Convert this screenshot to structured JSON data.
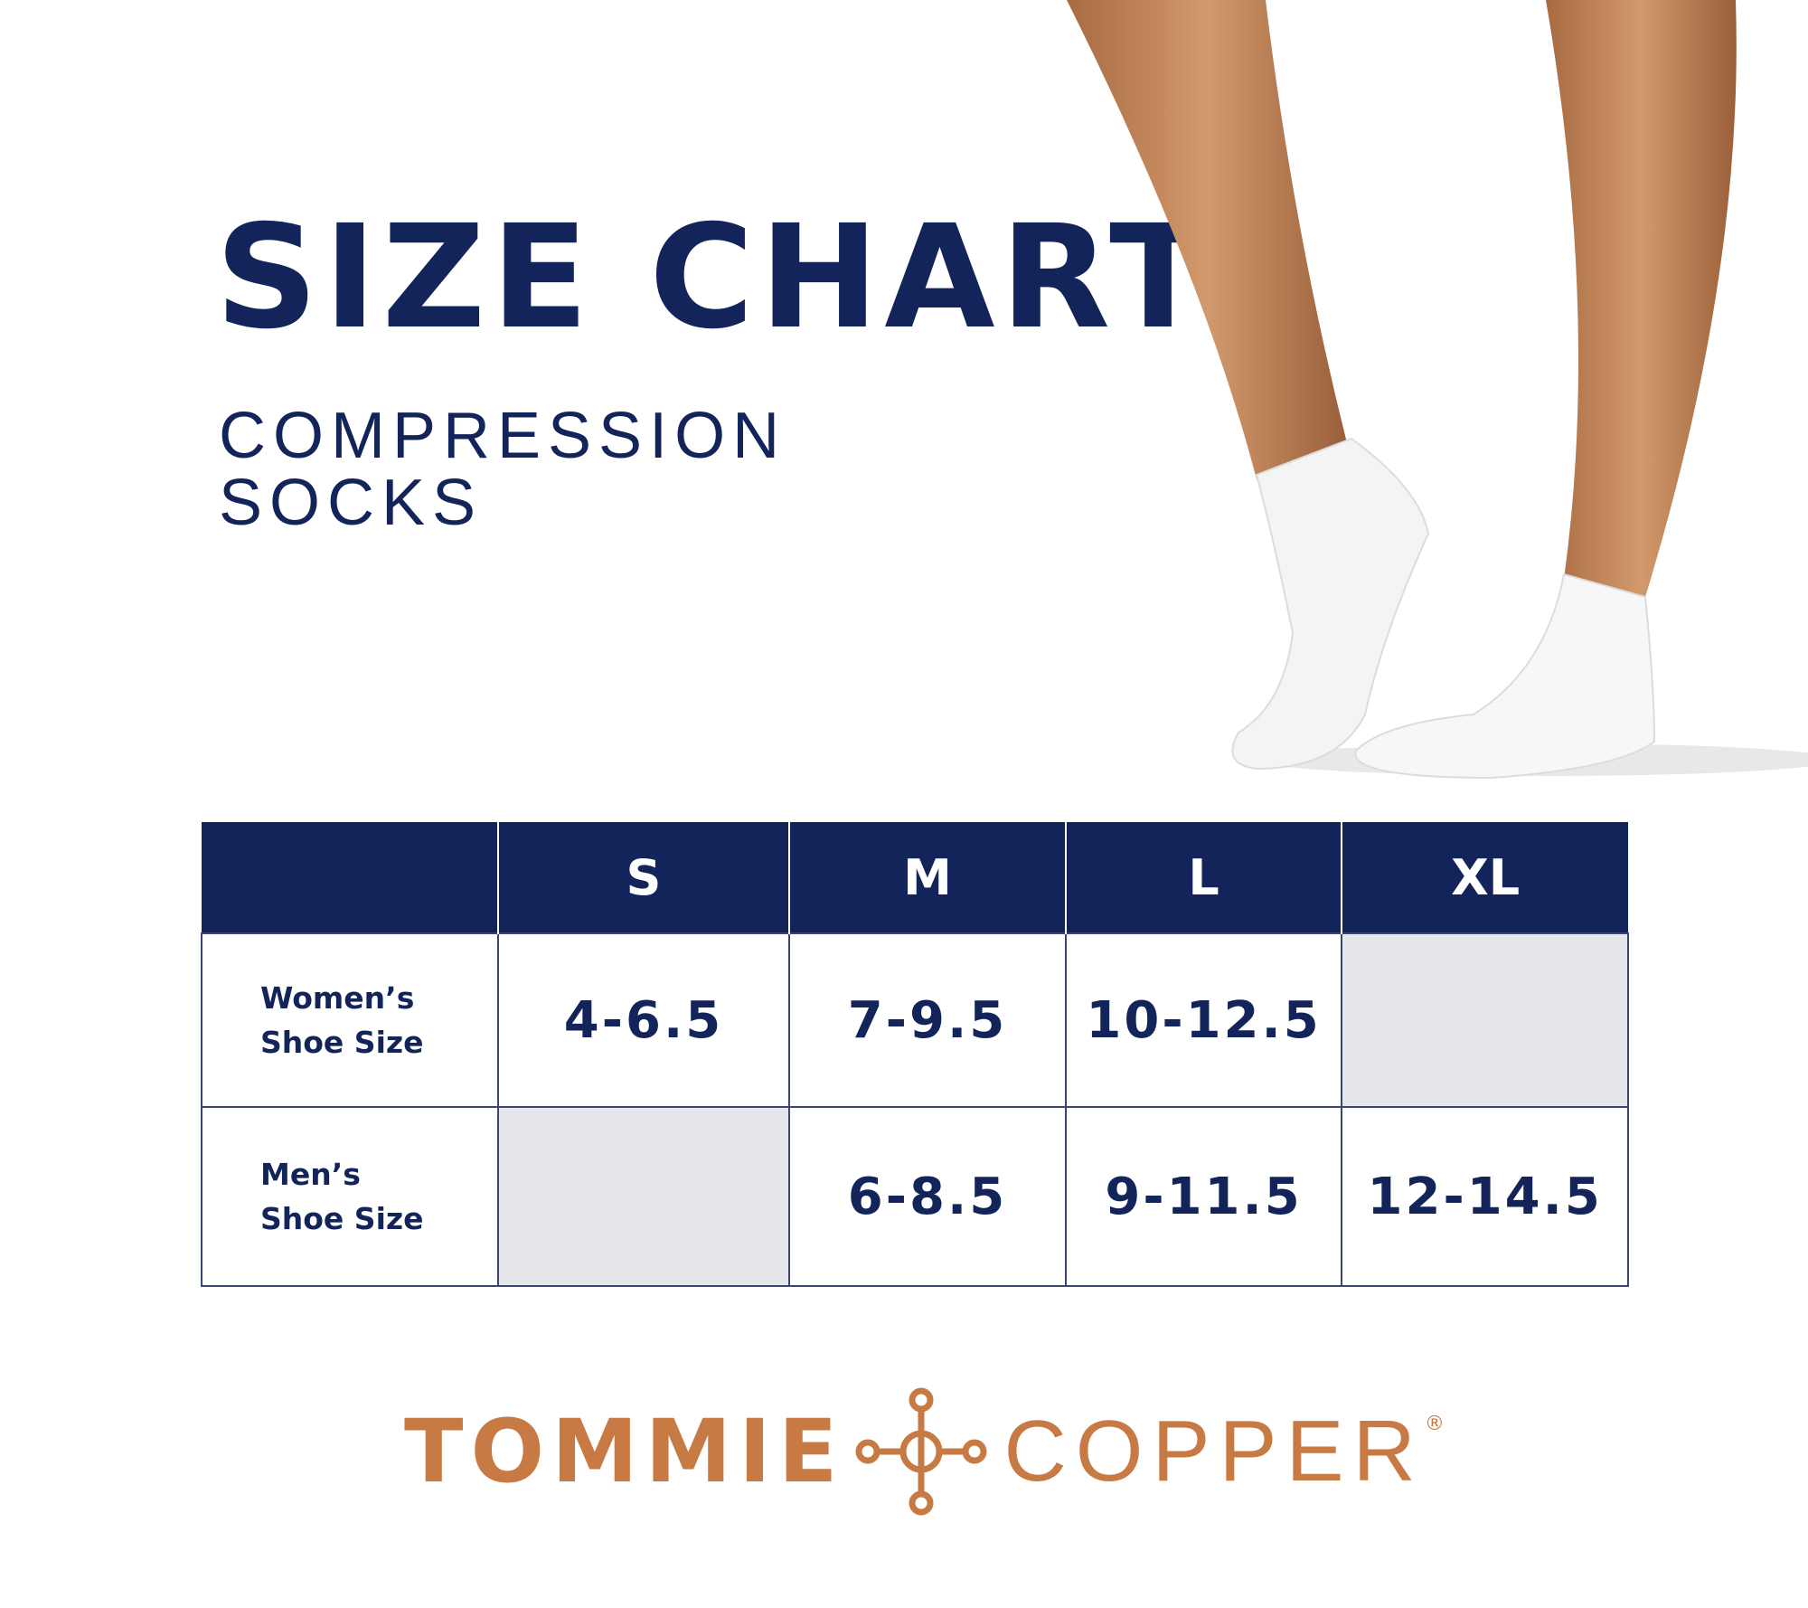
{
  "header": {
    "title": "SIZE CHART",
    "subtitle_line1": "COMPRESSION",
    "subtitle_line2": "SOCKS"
  },
  "table": {
    "columns": [
      "",
      "S",
      "M",
      "L",
      "XL"
    ],
    "rows": [
      {
        "label_line1": "Women’s",
        "label_line2": "Shoe Size",
        "values": [
          "4-6.5",
          "7-9.5",
          "10-12.5",
          ""
        ]
      },
      {
        "label_line1": "Men’s",
        "label_line2": "Shoe Size",
        "values": [
          "",
          "6-8.5",
          "9-11.5",
          "12-14.5"
        ]
      }
    ]
  },
  "brand": {
    "name_part1": "TOMMIE",
    "name_part2": "COPPER",
    "registered": "®"
  },
  "colors": {
    "navy": "#12245a",
    "empty_cell": "#e6e7eb",
    "copper": "#c87a45",
    "skin": "#c98a5a"
  },
  "image": {
    "subject": "legs-wearing-white-ankle-socks"
  }
}
